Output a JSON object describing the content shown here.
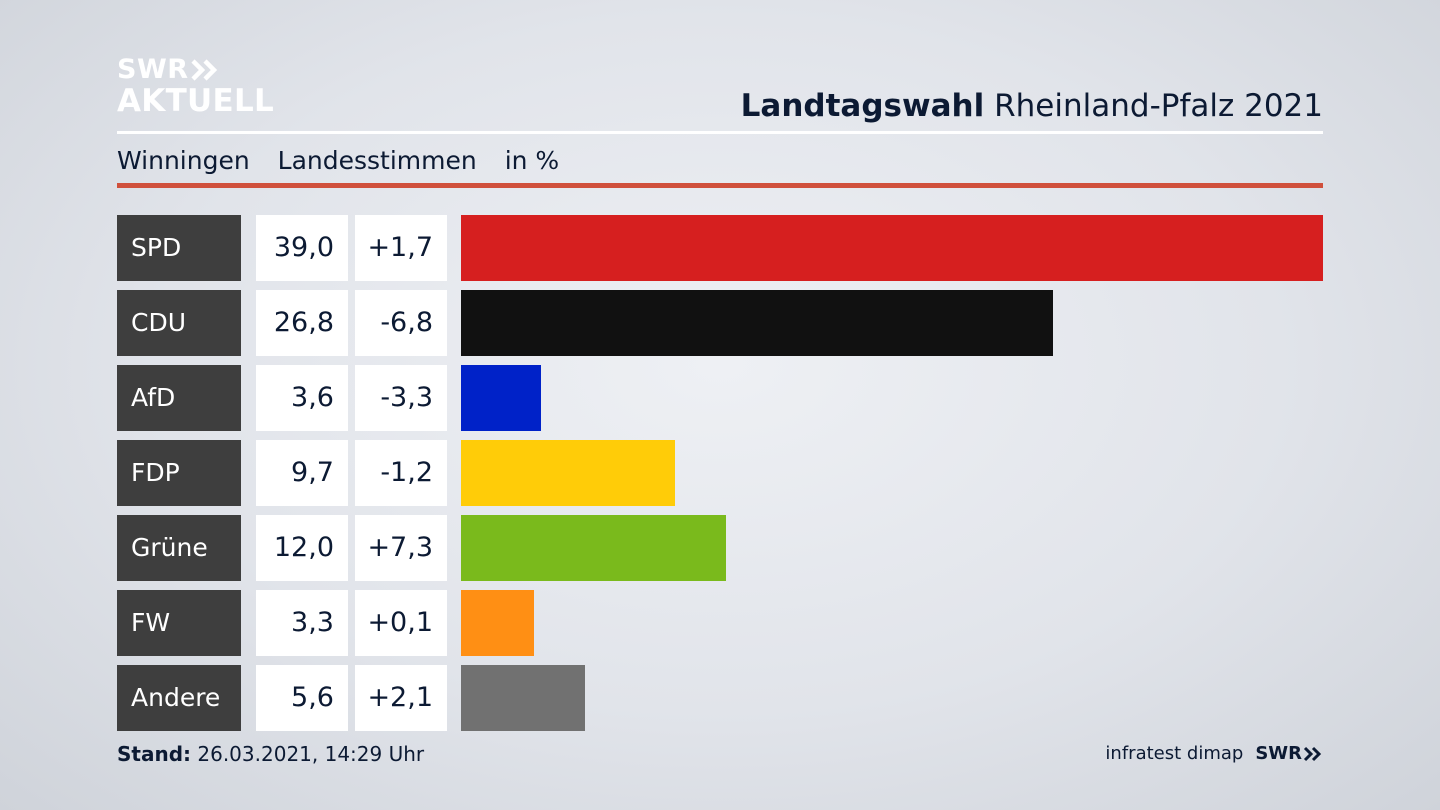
{
  "brand": {
    "line1": "SWR",
    "line2": "AKTUELL",
    "footer_logo": "SWR"
  },
  "header": {
    "title_bold": "Landtagswahl",
    "title_rest": "Rheinland-Pfalz 2021"
  },
  "subtitle": {
    "place": "Winningen",
    "measure": "Landesstimmen",
    "unit": "in %"
  },
  "chart_data": {
    "type": "bar",
    "orientation": "horizontal",
    "categories": [
      "SPD",
      "CDU",
      "AfD",
      "FDP",
      "Grüne",
      "FW",
      "Andere"
    ],
    "values": [
      39.0,
      26.8,
      3.6,
      9.7,
      12.0,
      3.3,
      5.6
    ],
    "value_labels": [
      "39,0",
      "26,8",
      "3,6",
      "9,7",
      "12,0",
      "3,3",
      "5,6"
    ],
    "diff_labels": [
      "+1,7",
      "-6,8",
      "-3,3",
      "-1,2",
      "+7,3",
      "+0,1",
      "+2,1"
    ],
    "diffs": [
      1.7,
      -6.8,
      -3.3,
      -1.2,
      7.3,
      0.1,
      2.1
    ],
    "colors": [
      "#d61f1f",
      "#111111",
      "#0022c8",
      "#ffcc08",
      "#7aba1c",
      "#ff8f14",
      "#717171"
    ],
    "xlim": [
      0,
      39.0
    ],
    "grid": false
  },
  "footer": {
    "stand_label": "Stand:",
    "stand_value": "26.03.2021, 14:29 Uhr",
    "source": "infratest dimap"
  }
}
